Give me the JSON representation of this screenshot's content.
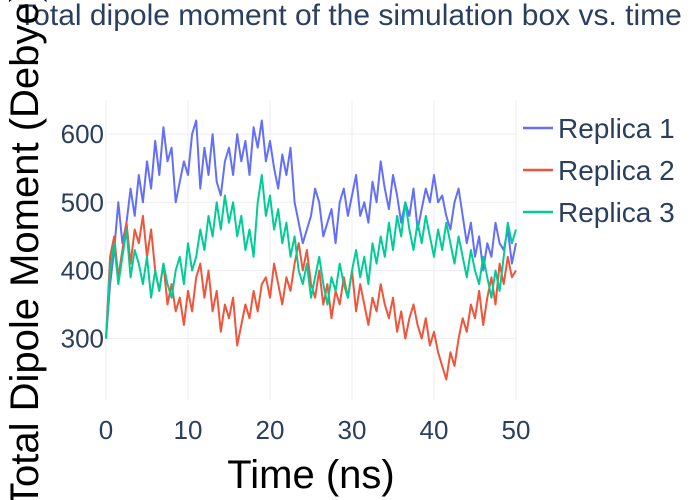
{
  "chart_data": {
    "type": "line",
    "title": "Total dipole moment of the simulation box vs. time",
    "xlabel": "Time (ns)",
    "ylabel": "Total Dipole Moment (Debye)",
    "xlim": [
      0,
      50
    ],
    "ylim": [
      210,
      650
    ],
    "xticks": [
      0,
      10,
      20,
      30,
      40,
      50
    ],
    "yticks": [
      300,
      400,
      500,
      600
    ],
    "grid": true,
    "legend_position": "top-right",
    "series": [
      {
        "name": "Replica 1",
        "color": "#636efa",
        "x": [
          0,
          0.5,
          1,
          1.5,
          2,
          2.5,
          3,
          3.5,
          4,
          4.5,
          5,
          5.5,
          6,
          6.5,
          7,
          7.5,
          8,
          8.5,
          9,
          9.5,
          10,
          10.5,
          11,
          11.5,
          12,
          12.5,
          13,
          13.5,
          14,
          14.5,
          15,
          15.5,
          16,
          16.5,
          17,
          17.5,
          18,
          18.5,
          19,
          19.5,
          20,
          20.5,
          21,
          21.5,
          22,
          22.5,
          23,
          23.5,
          24,
          24.5,
          25,
          25.5,
          26,
          26.5,
          27,
          27.5,
          28,
          28.5,
          29,
          29.5,
          30,
          30.5,
          31,
          31.5,
          32,
          32.5,
          33,
          33.5,
          34,
          34.5,
          35,
          35.5,
          36,
          36.5,
          37,
          37.5,
          38,
          38.5,
          39,
          39.5,
          40,
          40.5,
          41,
          41.5,
          42,
          42.5,
          43,
          43.5,
          44,
          44.5,
          45,
          45.5,
          46,
          46.5,
          47,
          47.5,
          48,
          48.5,
          49,
          49.5,
          50
        ],
        "values": [
          300,
          380,
          430,
          500,
          440,
          470,
          520,
          480,
          540,
          500,
          560,
          520,
          590,
          540,
          610,
          560,
          580,
          500,
          530,
          560,
          540,
          600,
          620,
          520,
          580,
          540,
          600,
          530,
          510,
          560,
          580,
          540,
          600,
          560,
          590,
          540,
          610,
          580,
          620,
          560,
          590,
          550,
          520,
          570,
          540,
          580,
          500,
          470,
          440,
          460,
          480,
          520,
          500,
          450,
          470,
          490,
          440,
          500,
          520,
          480,
          510,
          540,
          480,
          500,
          470,
          530,
          500,
          560,
          520,
          490,
          540,
          510,
          470,
          500,
          480,
          520,
          460,
          490,
          520,
          500,
          540,
          500,
          510,
          480,
          460,
          500,
          520,
          480,
          440,
          470,
          420,
          450,
          400,
          440,
          420,
          470,
          440,
          430,
          460,
          410,
          440
        ]
      },
      {
        "name": "Replica 2",
        "color": "#ef553b",
        "x": [
          0,
          0.5,
          1,
          1.5,
          2,
          2.5,
          3,
          3.5,
          4,
          4.5,
          5,
          5.5,
          6,
          6.5,
          7,
          7.5,
          8,
          8.5,
          9,
          9.5,
          10,
          10.5,
          11,
          11.5,
          12,
          12.5,
          13,
          13.5,
          14,
          14.5,
          15,
          15.5,
          16,
          16.5,
          17,
          17.5,
          18,
          18.5,
          19,
          19.5,
          20,
          20.5,
          21,
          21.5,
          22,
          22.5,
          23,
          23.5,
          24,
          24.5,
          25,
          25.5,
          26,
          26.5,
          27,
          27.5,
          28,
          28.5,
          29,
          29.5,
          30,
          30.5,
          31,
          31.5,
          32,
          32.5,
          33,
          33.5,
          34,
          34.5,
          35,
          35.5,
          36,
          36.5,
          37,
          37.5,
          38,
          38.5,
          39,
          39.5,
          40,
          40.5,
          41,
          41.5,
          42,
          42.5,
          43,
          43.5,
          44,
          44.5,
          45,
          45.5,
          46,
          46.5,
          47,
          47.5,
          48,
          48.5,
          49,
          49.5,
          50
        ],
        "values": [
          300,
          420,
          450,
          390,
          430,
          470,
          410,
          460,
          440,
          480,
          420,
          460,
          400,
          370,
          410,
          350,
          380,
          340,
          360,
          320,
          370,
          340,
          390,
          410,
          360,
          400,
          340,
          370,
          310,
          350,
          330,
          360,
          290,
          320,
          350,
          330,
          370,
          340,
          380,
          390,
          360,
          410,
          380,
          350,
          390,
          370,
          410,
          440,
          400,
          430,
          380,
          360,
          400,
          350,
          380,
          330,
          370,
          350,
          390,
          360,
          400,
          340,
          380,
          350,
          320,
          360,
          340,
          380,
          350,
          330,
          360,
          310,
          340,
          300,
          330,
          350,
          320,
          300,
          330,
          290,
          310,
          280,
          260,
          240,
          280,
          260,
          300,
          330,
          310,
          350,
          330,
          370,
          320,
          360,
          390,
          350,
          410,
          380,
          420,
          390,
          400
        ]
      },
      {
        "name": "Replica 3",
        "color": "#00cc96",
        "x": [
          0,
          0.5,
          1,
          1.5,
          2,
          2.5,
          3,
          3.5,
          4,
          4.5,
          5,
          5.5,
          6,
          6.5,
          7,
          7.5,
          8,
          8.5,
          9,
          9.5,
          10,
          10.5,
          11,
          11.5,
          12,
          12.5,
          13,
          13.5,
          14,
          14.5,
          15,
          15.5,
          16,
          16.5,
          17,
          17.5,
          18,
          18.5,
          19,
          19.5,
          20,
          20.5,
          21,
          21.5,
          22,
          22.5,
          23,
          23.5,
          24,
          24.5,
          25,
          25.5,
          26,
          26.5,
          27,
          27.5,
          28,
          28.5,
          29,
          29.5,
          30,
          30.5,
          31,
          31.5,
          32,
          32.5,
          33,
          33.5,
          34,
          34.5,
          35,
          35.5,
          36,
          36.5,
          37,
          37.5,
          38,
          38.5,
          39,
          39.5,
          40,
          40.5,
          41,
          41.5,
          42,
          42.5,
          43,
          43.5,
          44,
          44.5,
          45,
          45.5,
          46,
          46.5,
          47,
          47.5,
          48,
          48.5,
          49,
          49.5,
          50
        ],
        "values": [
          300,
          400,
          440,
          380,
          420,
          460,
          390,
          430,
          410,
          380,
          420,
          360,
          400,
          370,
          410,
          380,
          360,
          400,
          420,
          380,
          440,
          400,
          420,
          460,
          430,
          480,
          450,
          500,
          460,
          510,
          470,
          500,
          450,
          480,
          430,
          460,
          420,
          500,
          540,
          480,
          510,
          460,
          490,
          440,
          470,
          420,
          450,
          400,
          380,
          410,
          360,
          390,
          420,
          380,
          350,
          390,
          370,
          410,
          380,
          360,
          400,
          430,
          390,
          420,
          380,
          440,
          410,
          450,
          420,
          470,
          430,
          480,
          450,
          500,
          460,
          430,
          470,
          440,
          480,
          450,
          420,
          460,
          430,
          470,
          440,
          410,
          450,
          420,
          390,
          430,
          400,
          380,
          420,
          390,
          360,
          400,
          370,
          420,
          470,
          440,
          460
        ]
      }
    ]
  }
}
